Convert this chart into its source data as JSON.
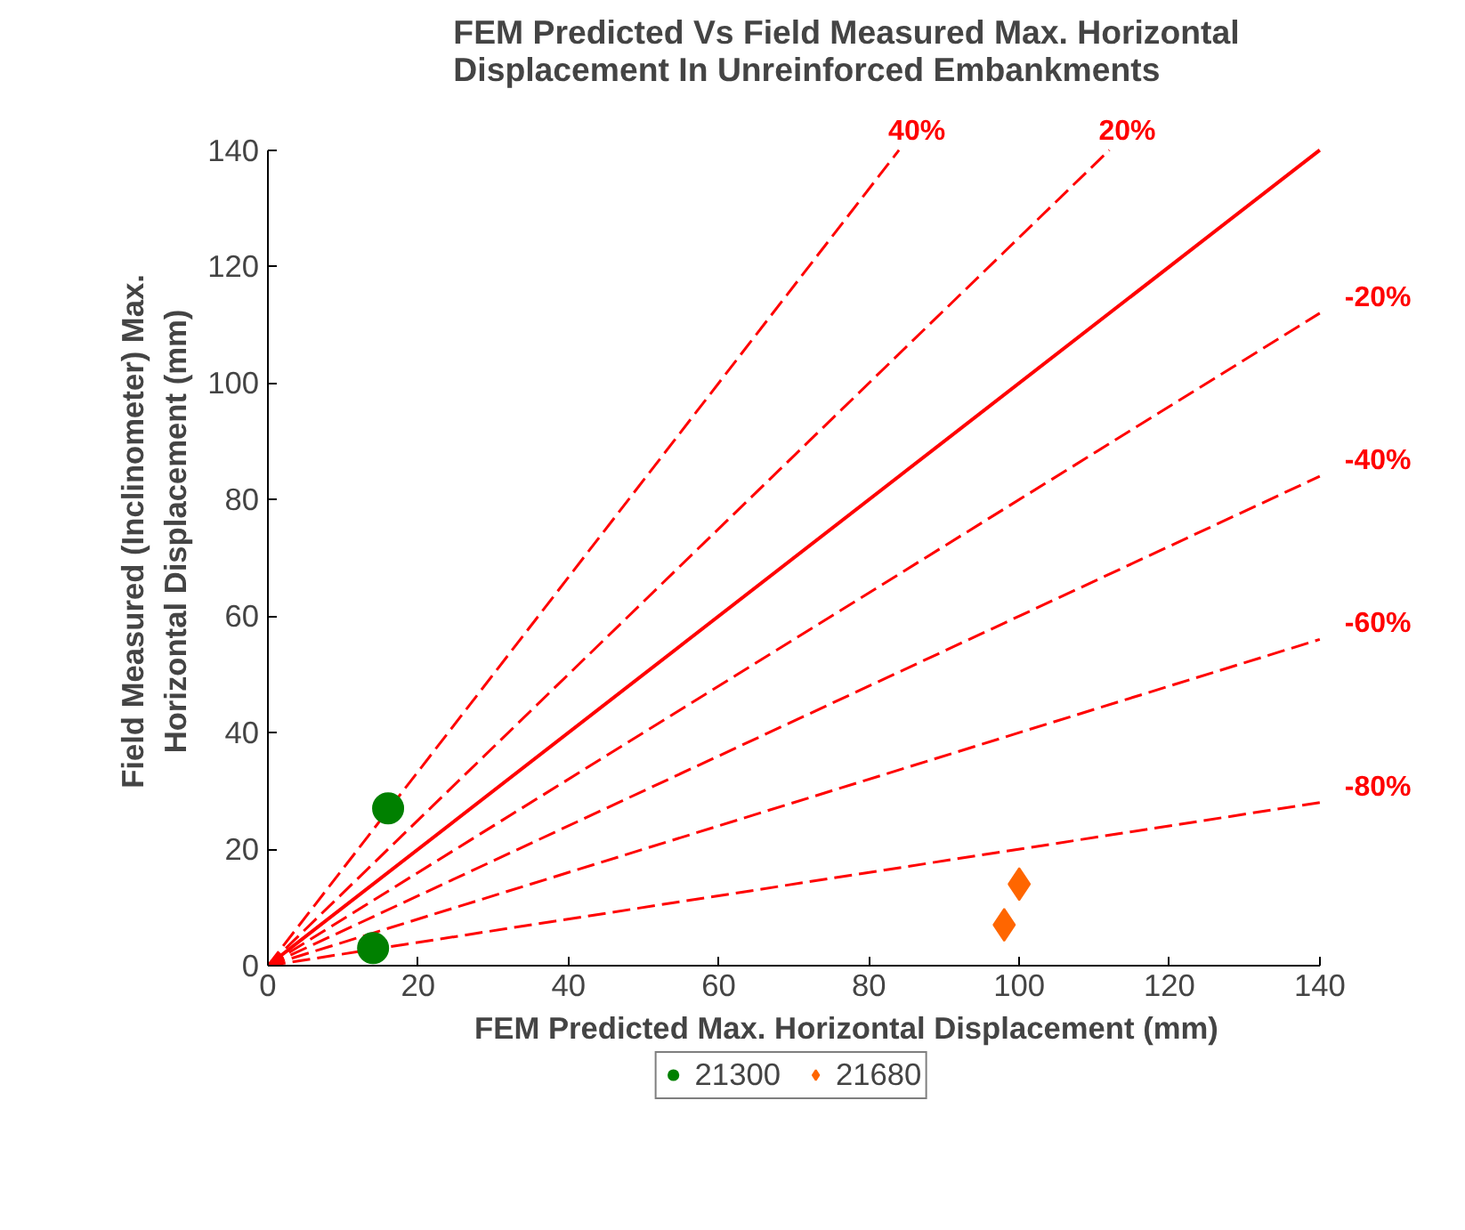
{
  "chart_data": {
    "type": "scatter",
    "title": "FEM Predicted Vs Field Measured Max. Horizontal\nDisplacement In Unreinforced Embankments",
    "xlabel": "FEM Predicted Max. Horizontal Displacement (mm)",
    "ylabel": "Field Measured (Inclinometer) Max.\nHorizontal Displacement (mm)",
    "xlim": [
      0,
      140
    ],
    "ylim": [
      0,
      140
    ],
    "xticks": [
      0,
      20,
      40,
      60,
      80,
      100,
      120,
      140
    ],
    "yticks": [
      0,
      20,
      40,
      60,
      80,
      100,
      120,
      140
    ],
    "grid": false,
    "legend": "bottom",
    "series": [
      {
        "type": "line",
        "name": "40%",
        "color": "#ff0000",
        "line_style": "dashed",
        "x": [
          0,
          84
        ],
        "values": [
          0,
          140
        ]
      },
      {
        "type": "line",
        "name": "20%",
        "color": "#ff0000",
        "line_style": "dashed",
        "x": [
          0,
          112
        ],
        "values": [
          0,
          140
        ]
      },
      {
        "type": "line",
        "color": "#ff0000",
        "line_style": "solid",
        "x": [
          0,
          140
        ],
        "values": [
          0,
          140
        ]
      },
      {
        "type": "line",
        "name": "-20%",
        "color": "#ff0000",
        "line_style": "dashed",
        "x": [
          0,
          140
        ],
        "values": [
          0,
          112
        ]
      },
      {
        "type": "line",
        "name": "-40%",
        "color": "#ff0000",
        "line_style": "dashed",
        "x": [
          0,
          140
        ],
        "values": [
          0,
          84
        ]
      },
      {
        "type": "line",
        "name": "-60%",
        "color": "#ff0000",
        "line_style": "dashed",
        "x": [
          0,
          140
        ],
        "values": [
          0,
          56
        ]
      },
      {
        "type": "line",
        "name": "-80%",
        "color": "#ff0000",
        "line_style": "dashed",
        "x": [
          0,
          140
        ],
        "values": [
          0,
          28
        ]
      },
      {
        "name": "21300",
        "color": "#008000",
        "marker": "circle",
        "x": [
          16,
          14
        ],
        "values": [
          27,
          3
        ]
      },
      {
        "name": "21680",
        "color": "#ff6600",
        "marker": "diamond",
        "x": [
          100,
          98
        ],
        "values": [
          14,
          7
        ]
      }
    ]
  }
}
